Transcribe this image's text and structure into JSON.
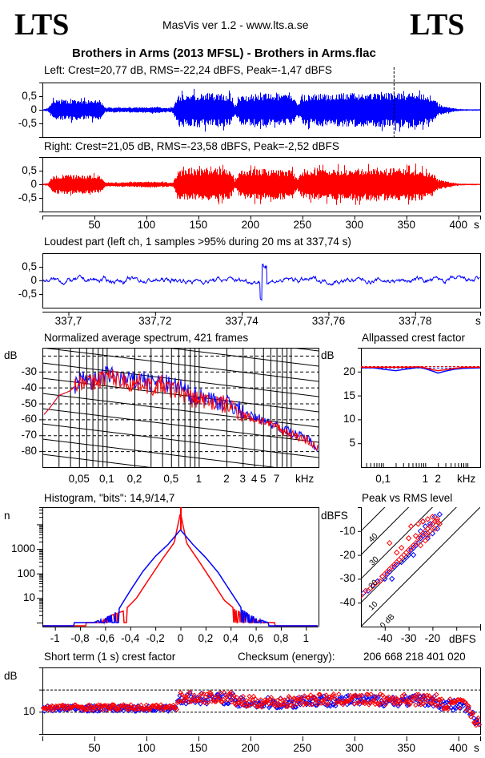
{
  "header": {
    "logo_left": "LTS",
    "logo_right": "LTS",
    "app_title": "MasVis ver 1.2 - www.lts.a.se",
    "file_title": "Brothers in Arms (2013 MFSL) - Brothers in Arms.flac"
  },
  "colors": {
    "left": "#0000ff",
    "right": "#ff0000",
    "axis": "#000000"
  },
  "chart_data": [
    {
      "id": "left-waveform",
      "type": "area",
      "title": "Left: Crest=20,77 dB, RMS=-22,24 dBFS, Peak=-1,47 dBFS",
      "series": [
        {
          "name": "Left",
          "color": "#0000ff"
        }
      ],
      "yticks": [
        "0,5",
        "0",
        "-0,5"
      ],
      "ylim": [
        -1,
        1
      ],
      "xlim": [
        0,
        421
      ],
      "marker_time_s": 337.74,
      "envelope": {
        "x": [
          0,
          5,
          10,
          20,
          30,
          40,
          55,
          60,
          70,
          80,
          100,
          110,
          120,
          125,
          130,
          140,
          160,
          175,
          180,
          185,
          190,
          210,
          230,
          240,
          245,
          250,
          270,
          300,
          330,
          350,
          365,
          375,
          380,
          390,
          400,
          410,
          421
        ],
        "y": [
          0.02,
          0.05,
          0.35,
          0.38,
          0.37,
          0.35,
          0.35,
          0.08,
          0.08,
          0.08,
          0.1,
          0.1,
          0.08,
          0.08,
          0.55,
          0.6,
          0.62,
          0.6,
          0.55,
          0.15,
          0.55,
          0.6,
          0.58,
          0.55,
          0.2,
          0.55,
          0.6,
          0.62,
          0.62,
          0.65,
          0.6,
          0.45,
          0.2,
          0.1,
          0.03,
          0.02,
          0.02
        ]
      }
    },
    {
      "id": "right-waveform",
      "type": "area",
      "title": "Right: Crest=21,05 dB, RMS=-23,58 dBFS, Peak=-2,52 dBFS",
      "series": [
        {
          "name": "Right",
          "color": "#ff0000"
        }
      ],
      "yticks": [
        "0,5",
        "0",
        "-0,5"
      ],
      "xticks": [
        "50",
        "100",
        "150",
        "200",
        "250",
        "300",
        "350",
        "400"
      ],
      "xunit": "s",
      "ylim": [
        -1,
        1
      ],
      "xlim": [
        0,
        421
      ]
    },
    {
      "id": "loudest-part",
      "type": "line",
      "title": "Loudest part (left  ch, 1 samples >95% during 20 ms at 337,74 s)",
      "yticks": [
        "0,5",
        "0",
        "-0,5"
      ],
      "xticks": [
        "337,7",
        "337,72",
        "337,74",
        "337,76",
        "337,78"
      ],
      "xtick_values": [
        337.7,
        337.72,
        337.74,
        337.76,
        337.78
      ],
      "xunit": "s",
      "xlim": [
        337.694,
        337.795
      ],
      "ylim": [
        -1,
        1
      ],
      "series": [
        {
          "name": "Left",
          "color": "#0000ff"
        }
      ]
    },
    {
      "id": "spectrum",
      "type": "line",
      "title": "Normalized average spectrum, 421 frames",
      "ylabel": "dB",
      "yticks": [
        "-30",
        "-40",
        "-50",
        "-60",
        "-70",
        "-80"
      ],
      "ytick_values": [
        -30,
        -40,
        -50,
        -60,
        -70,
        -80
      ],
      "ylim": [
        -90,
        -15
      ],
      "xticks": [
        "0,05",
        "0,1",
        "0,2",
        "0,5",
        "1",
        "2",
        "3",
        "4",
        "5",
        "7"
      ],
      "xtick_values": [
        0.05,
        0.1,
        0.2,
        0.5,
        1,
        2,
        3,
        4,
        5,
        7
      ],
      "xunit": "kHz",
      "xlim": [
        0.02,
        20
      ],
      "xscale": "log",
      "series": [
        {
          "name": "Left",
          "color": "#0000ff",
          "x": [
            0.02,
            0.03,
            0.04,
            0.05,
            0.06,
            0.07,
            0.08,
            0.1,
            0.12,
            0.15,
            0.2,
            0.25,
            0.3,
            0.4,
            0.5,
            0.6,
            0.8,
            1,
            1.2,
            1.5,
            2,
            2.5,
            3,
            4,
            5,
            6,
            7,
            8,
            10,
            12,
            15,
            20
          ],
          "y": [
            -58,
            -45,
            -42,
            -36,
            -33,
            -38,
            -34,
            -32,
            -33,
            -35,
            -36,
            -34,
            -38,
            -36,
            -40,
            -39,
            -45,
            -45,
            -46,
            -48,
            -50,
            -52,
            -56,
            -59,
            -60,
            -63,
            -63,
            -66,
            -68,
            -70,
            -72,
            -78
          ]
        },
        {
          "name": "Right",
          "color": "#ff0000",
          "x": [
            0.02,
            0.03,
            0.04,
            0.05,
            0.06,
            0.07,
            0.08,
            0.1,
            0.12,
            0.15,
            0.2,
            0.25,
            0.3,
            0.4,
            0.5,
            0.6,
            0.8,
            1,
            1.2,
            1.5,
            2,
            2.5,
            3,
            4,
            5,
            6,
            7,
            8,
            10,
            12,
            15,
            20
          ],
          "y": [
            -58,
            -45,
            -42,
            -37,
            -34,
            -39,
            -35,
            -33,
            -34,
            -36,
            -38,
            -36,
            -40,
            -38,
            -42,
            -41,
            -47,
            -47,
            -48,
            -50,
            -51,
            -53,
            -57,
            -60,
            -61,
            -64,
            -64,
            -67,
            -69,
            -71,
            -73,
            -79
          ]
        }
      ]
    },
    {
      "id": "allpassed-crest",
      "type": "line",
      "title": "Allpassed crest factor",
      "ylabel": "dB",
      "yticks": [
        "20",
        "15",
        "10",
        "5"
      ],
      "ytick_values": [
        20,
        15,
        10,
        5
      ],
      "ylim": [
        0,
        25
      ],
      "xticks": [
        "0,1",
        "1",
        "2"
      ],
      "xtick_values": [
        0.1,
        1,
        2
      ],
      "xunit": "kHz",
      "xlim": [
        0.03,
        20
      ],
      "xscale": "log",
      "reference_db": {
        "left": 20.77,
        "right": 21.05
      },
      "series": [
        {
          "name": "Left",
          "color": "#0000ff",
          "x": [
            0.03,
            0.06,
            0.1,
            0.2,
            0.4,
            0.7,
            1,
            1.5,
            2,
            3,
            5,
            8,
            20
          ],
          "y": [
            20.8,
            20.8,
            20.5,
            20.2,
            20.6,
            20.9,
            20.6,
            20.1,
            19.7,
            20.1,
            20.5,
            20.7,
            20.8
          ]
        },
        {
          "name": "Right",
          "color": "#ff0000",
          "x": [
            0.03,
            0.06,
            0.1,
            0.2,
            0.4,
            0.7,
            1,
            1.5,
            2,
            3,
            5,
            8,
            20
          ],
          "y": [
            20.9,
            20.9,
            20.9,
            20.9,
            20.9,
            21.0,
            20.8,
            20.4,
            20.2,
            20.4,
            20.7,
            20.9,
            20.9
          ]
        }
      ]
    },
    {
      "id": "histogram",
      "type": "line",
      "title": "Histogram, \"bits\": 14,9/14,7",
      "ylabel": "n",
      "yticks": [
        "1000",
        "100",
        "10"
      ],
      "ytick_values": [
        1000,
        100,
        10
      ],
      "yscale": "log",
      "ylim": [
        1,
        50000
      ],
      "xticks": [
        "-1",
        "-0,8",
        "-0,6",
        "-0,4",
        "-0,2",
        "0",
        "0,2",
        "0,4",
        "0,6",
        "0,8",
        "1"
      ],
      "xtick_values": [
        -1,
        -0.8,
        -0.6,
        -0.4,
        -0.2,
        0,
        0.2,
        0.4,
        0.6,
        0.8,
        1
      ],
      "xlim": [
        -1.1,
        1.1
      ],
      "series": [
        {
          "name": "Left",
          "color": "#0000ff",
          "x": [
            -0.85,
            -0.7,
            -0.6,
            -0.5,
            -0.4,
            -0.3,
            -0.2,
            -0.1,
            0,
            0.1,
            0.2,
            0.3,
            0.4,
            0.5,
            0.6,
            0.7
          ],
          "y": [
            1,
            1,
            1.5,
            3,
            20,
            120,
            500,
            1500,
            6000,
            1500,
            450,
            110,
            18,
            3,
            1.5,
            1
          ]
        },
        {
          "name": "Right",
          "color": "#ff0000",
          "x": [
            -0.75,
            -0.65,
            -0.55,
            -0.45,
            -0.35,
            -0.25,
            -0.15,
            -0.05,
            0,
            0.05,
            0.15,
            0.25,
            0.35,
            0.45,
            0.55,
            0.65,
            0.75
          ],
          "y": [
            1,
            1,
            2,
            3,
            10,
            60,
            350,
            1800,
            30000,
            1700,
            300,
            50,
            8,
            3,
            2,
            1,
            1
          ]
        }
      ]
    },
    {
      "id": "peak-vs-rms",
      "type": "scatter",
      "title": "Peak vs RMS level",
      "ylabel": "dBFS",
      "xlabel": "dBFS",
      "yticks": [
        "-10",
        "-20",
        "-30",
        "-40"
      ],
      "ytick_values": [
        -10,
        -20,
        -30,
        -40
      ],
      "xticks": [
        "-40",
        "-30",
        "-20"
      ],
      "xtick_values": [
        -40,
        -30,
        -20
      ],
      "xlim": [
        -50,
        0
      ],
      "ylim": [
        -50,
        0
      ],
      "crest_lines": [
        "40",
        "30",
        "20",
        "10",
        "0 dB"
      ],
      "crest_line_values": [
        40,
        30,
        20,
        10,
        0
      ],
      "series": [
        {
          "name": "Left",
          "color": "#0000ff",
          "x": [
            -49,
            -47,
            -45,
            -43,
            -41,
            -39,
            -38,
            -36,
            -35,
            -33,
            -31,
            -30,
            -29,
            -28,
            -27,
            -26,
            -25,
            -24,
            -23,
            -22,
            -21,
            -20,
            -19,
            -18,
            -25,
            -23,
            -21,
            -19,
            -17,
            -22,
            -20,
            -18,
            -24,
            -28,
            -32,
            -37,
            -40
          ],
          "y": [
            -36,
            -35,
            -33,
            -31,
            -29,
            -28,
            -27,
            -25,
            -24,
            -23,
            -21,
            -20,
            -18,
            -17,
            -16,
            -15,
            -13,
            -12,
            -11,
            -9,
            -8,
            -7,
            -6,
            -5,
            -10,
            -8,
            -7,
            -4,
            -3,
            -13,
            -11,
            -9,
            -6,
            -20,
            -22,
            -30,
            -30
          ]
        },
        {
          "name": "Right",
          "color": "#ff0000",
          "x": [
            -50,
            -48,
            -46,
            -44,
            -42,
            -41,
            -40,
            -39,
            -38,
            -37,
            -36,
            -35,
            -34,
            -33,
            -32,
            -31,
            -30,
            -29,
            -28,
            -27,
            -26,
            -25,
            -24,
            -23,
            -22,
            -21,
            -20,
            -19,
            -18,
            -17,
            -26,
            -24,
            -22,
            -20,
            -18,
            -29,
            -27,
            -23,
            -21,
            -19,
            -38,
            -35,
            -33,
            -30,
            -25,
            -22
          ],
          "y": [
            -37,
            -35,
            -34,
            -32,
            -31,
            -29,
            -28,
            -27,
            -26,
            -25,
            -24,
            -23,
            -22,
            -21,
            -20,
            -19,
            -18,
            -17,
            -16,
            -15,
            -13,
            -12,
            -11,
            -10,
            -9,
            -8,
            -7,
            -6,
            -6,
            -7,
            -7,
            -6,
            -5,
            -4,
            -5,
            -8,
            -12,
            -14,
            -10,
            -9,
            -15,
            -19,
            -17,
            -13,
            -16,
            -12
          ]
        }
      ]
    },
    {
      "id": "short-term-crest",
      "type": "scatter",
      "title": "Short term (1 s) crest factor",
      "ylabel": "dB",
      "yticks": [
        "10"
      ],
      "ytick_values": [
        10
      ],
      "dashed_levels": [
        10,
        20
      ],
      "ylim": [
        0,
        30
      ],
      "xticks": [
        "50",
        "100",
        "150",
        "200",
        "250",
        "300",
        "350",
        "400"
      ],
      "xtick_values": [
        50,
        100,
        150,
        200,
        250,
        300,
        350,
        400
      ],
      "xunit": "s",
      "xlim": [
        0,
        421
      ],
      "series": [
        {
          "name": "Left",
          "color": "#0000ff"
        },
        {
          "name": "Right",
          "color": "#ff0000"
        }
      ]
    }
  ],
  "checksum": {
    "label": "Checksum (energy):",
    "value": "206 668 218 401 020"
  }
}
